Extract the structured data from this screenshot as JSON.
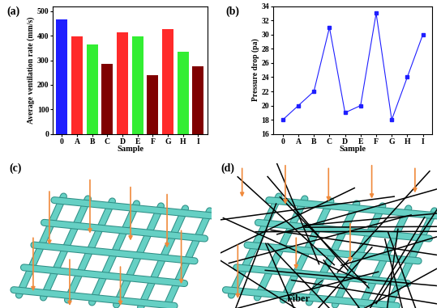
{
  "chart_data": [
    {
      "type": "bar",
      "annotations": [
        "(a)"
      ],
      "x_label": "Sample",
      "y_label": "Average ventilation rate (mm/s)",
      "categories": [
        "0",
        "A",
        "B",
        "C",
        "D",
        "E",
        "F",
        "G",
        "H",
        "I"
      ],
      "values": [
        465,
        398,
        365,
        285,
        413,
        397,
        240,
        427,
        335,
        277
      ],
      "colors": [
        "#1f1fff",
        "#ff2a2a",
        "#33ee33",
        "#800000",
        "#ff2a2a",
        "#33ee33",
        "#800000",
        "#ff2a2a",
        "#33ee33",
        "#800000"
      ],
      "ylim": [
        0,
        520
      ],
      "yticks": [
        0,
        100,
        200,
        300,
        400,
        500
      ],
      "grid": false
    },
    {
      "type": "line",
      "annotations": [
        "(b)"
      ],
      "x_label": "Sample",
      "y_label": "Pressure drop (pa)",
      "categories": [
        "0",
        "A",
        "B",
        "C",
        "D",
        "E",
        "F",
        "G",
        "H",
        "I"
      ],
      "values": [
        18,
        20,
        22,
        31,
        19,
        20,
        33,
        18,
        24,
        30
      ],
      "color": "#1f1fff",
      "marker": "square",
      "line_style": "solid",
      "ylim": [
        16,
        34
      ],
      "yticks": [
        16,
        18,
        20,
        22,
        24,
        26,
        28,
        30,
        32,
        34
      ],
      "grid": false
    }
  ],
  "diagrams": [
    {
      "label": "(c)"
    },
    {
      "label": "(d)",
      "annotation": "Fiber"
    }
  ]
}
